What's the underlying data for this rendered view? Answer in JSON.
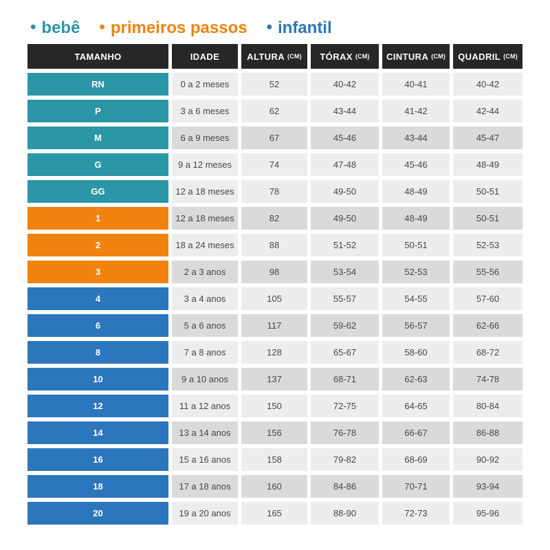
{
  "legend": {
    "bullet": "•",
    "items": [
      {
        "key": "bebe",
        "label": "bebê",
        "color": "#2B96A5"
      },
      {
        "key": "primeiros-passos",
        "label": "primeiros passos",
        "color": "#F0820F"
      },
      {
        "key": "infantil",
        "label": "infantil",
        "color": "#2B76BC"
      }
    ]
  },
  "table": {
    "header_bg": "#272727",
    "row_bg_light": "#EEEDEB",
    "row_bg_dark": "#DBDAD8",
    "columns": [
      {
        "key": "size",
        "label": "TAMANHO",
        "unit": ""
      },
      {
        "key": "idade",
        "label": "IDADE",
        "unit": ""
      },
      {
        "key": "altura",
        "label": "ALTURA",
        "unit": "(CM)"
      },
      {
        "key": "torax",
        "label": "TÓRAX",
        "unit": "(CM)"
      },
      {
        "key": "cintura",
        "label": "CINTURA",
        "unit": "(CM)"
      },
      {
        "key": "quadril",
        "label": "QUADRIL",
        "unit": "(CM)"
      }
    ],
    "rows": [
      {
        "size": "RN",
        "group": "bebe",
        "shade": "light",
        "idade": "0 a 2 meses",
        "altura": "52",
        "torax": "40-42",
        "cintura": "40-41",
        "quadril": "40-42"
      },
      {
        "size": "P",
        "group": "bebe",
        "shade": "light",
        "idade": "3 a 6 meses",
        "altura": "62",
        "torax": "43-44",
        "cintura": "41-42",
        "quadril": "42-44"
      },
      {
        "size": "M",
        "group": "bebe",
        "shade": "dark",
        "idade": "6 a 9 meses",
        "altura": "67",
        "torax": "45-46",
        "cintura": "43-44",
        "quadril": "45-47"
      },
      {
        "size": "G",
        "group": "bebe",
        "shade": "light",
        "idade": "9 a 12 meses",
        "altura": "74",
        "torax": "47-48",
        "cintura": "45-46",
        "quadril": "48-49"
      },
      {
        "size": "GG",
        "group": "bebe",
        "shade": "light",
        "idade": "12 a 18 meses",
        "altura": "78",
        "torax": "49-50",
        "cintura": "48-49",
        "quadril": "50-51"
      },
      {
        "size": "1",
        "group": "primeiros-passos",
        "shade": "dark",
        "idade": "12 a 18 meses",
        "altura": "82",
        "torax": "49-50",
        "cintura": "48-49",
        "quadril": "50-51"
      },
      {
        "size": "2",
        "group": "primeiros-passos",
        "shade": "light",
        "idade": "18 a 24 meses",
        "altura": "88",
        "torax": "51-52",
        "cintura": "50-51",
        "quadril": "52-53"
      },
      {
        "size": "3",
        "group": "primeiros-passos",
        "shade": "dark",
        "idade": "2 a 3 anos",
        "altura": "98",
        "torax": "53-54",
        "cintura": "52-53",
        "quadril": "55-56"
      },
      {
        "size": "4",
        "group": "infantil",
        "shade": "light",
        "idade": "3 a 4 anos",
        "altura": "105",
        "torax": "55-57",
        "cintura": "54-55",
        "quadril": "57-60"
      },
      {
        "size": "6",
        "group": "infantil",
        "shade": "dark",
        "idade": "5 a 6 anos",
        "altura": "117",
        "torax": "59-62",
        "cintura": "56-57",
        "quadril": "62-66"
      },
      {
        "size": "8",
        "group": "infantil",
        "shade": "light",
        "idade": "7 a 8 anos",
        "altura": "128",
        "torax": "65-67",
        "cintura": "58-60",
        "quadril": "68-72"
      },
      {
        "size": "10",
        "group": "infantil",
        "shade": "dark",
        "idade": "9 a 10 anos",
        "altura": "137",
        "torax": "68-71",
        "cintura": "62-63",
        "quadril": "74-78"
      },
      {
        "size": "12",
        "group": "infantil",
        "shade": "light",
        "idade": "11 a 12 anos",
        "altura": "150",
        "torax": "72-75",
        "cintura": "64-65",
        "quadril": "80-84"
      },
      {
        "size": "14",
        "group": "infantil",
        "shade": "dark",
        "idade": "13 a 14 anos",
        "altura": "156",
        "torax": "76-78",
        "cintura": "66-67",
        "quadril": "86-88"
      },
      {
        "size": "16",
        "group": "infantil",
        "shade": "light",
        "idade": "15 a 16 anos",
        "altura": "158",
        "torax": "79-82",
        "cintura": "68-69",
        "quadril": "90-92"
      },
      {
        "size": "18",
        "group": "infantil",
        "shade": "dark",
        "idade": "17 a 18 anos",
        "altura": "160",
        "torax": "84-86",
        "cintura": "70-71",
        "quadril": "93-94"
      },
      {
        "size": "20",
        "group": "infantil",
        "shade": "light",
        "idade": "19 a 20 anos",
        "altura": "165",
        "torax": "88-90",
        "cintura": "72-73",
        "quadril": "95-96"
      }
    ]
  },
  "chart_data": {
    "type": "table",
    "title": "Tabela de medidas infantil (bebê / primeiros passos / infantil)",
    "legend": [
      "bebê",
      "primeiros passos",
      "infantil"
    ],
    "legend_colors": [
      "#2B96A5",
      "#F0820F",
      "#2B76BC"
    ],
    "columns": [
      "TAMANHO",
      "IDADE",
      "ALTURA (CM)",
      "TÓRAX (CM)",
      "CINTURA (CM)",
      "QUADRIL (CM)"
    ],
    "rows": [
      [
        "RN",
        "0 a 2 meses",
        "52",
        "40-42",
        "40-41",
        "40-42"
      ],
      [
        "P",
        "3 a 6 meses",
        "62",
        "43-44",
        "41-42",
        "42-44"
      ],
      [
        "M",
        "6 a 9 meses",
        "67",
        "45-46",
        "43-44",
        "45-47"
      ],
      [
        "G",
        "9 a 12 meses",
        "74",
        "47-48",
        "45-46",
        "48-49"
      ],
      [
        "GG",
        "12 a 18 meses",
        "78",
        "49-50",
        "48-49",
        "50-51"
      ],
      [
        "1",
        "12 a 18 meses",
        "82",
        "49-50",
        "48-49",
        "50-51"
      ],
      [
        "2",
        "18 a 24 meses",
        "88",
        "51-52",
        "50-51",
        "52-53"
      ],
      [
        "3",
        "2 a 3 anos",
        "98",
        "53-54",
        "52-53",
        "55-56"
      ],
      [
        "4",
        "3 a 4 anos",
        "105",
        "55-57",
        "54-55",
        "57-60"
      ],
      [
        "6",
        "5 a 6 anos",
        "117",
        "59-62",
        "56-57",
        "62-66"
      ],
      [
        "8",
        "7 a 8 anos",
        "128",
        "65-67",
        "58-60",
        "68-72"
      ],
      [
        "10",
        "9 a 10 anos",
        "137",
        "68-71",
        "62-63",
        "74-78"
      ],
      [
        "12",
        "11 a 12 anos",
        "150",
        "72-75",
        "64-65",
        "80-84"
      ],
      [
        "14",
        "13 a 14 anos",
        "156",
        "76-78",
        "66-67",
        "86-88"
      ],
      [
        "16",
        "15 a 16 anos",
        "158",
        "79-82",
        "68-69",
        "90-92"
      ],
      [
        "18",
        "17 a 18 anos",
        "160",
        "84-86",
        "70-71",
        "93-94"
      ],
      [
        "20",
        "19 a 20 anos",
        "165",
        "88-90",
        "72-73",
        "95-96"
      ]
    ],
    "row_groups": {
      "bebê": [
        "RN",
        "P",
        "M",
        "G",
        "GG"
      ],
      "primeiros passos": [
        "1",
        "2",
        "3"
      ],
      "infantil": [
        "4",
        "6",
        "8",
        "10",
        "12",
        "14",
        "16",
        "18",
        "20"
      ]
    }
  }
}
